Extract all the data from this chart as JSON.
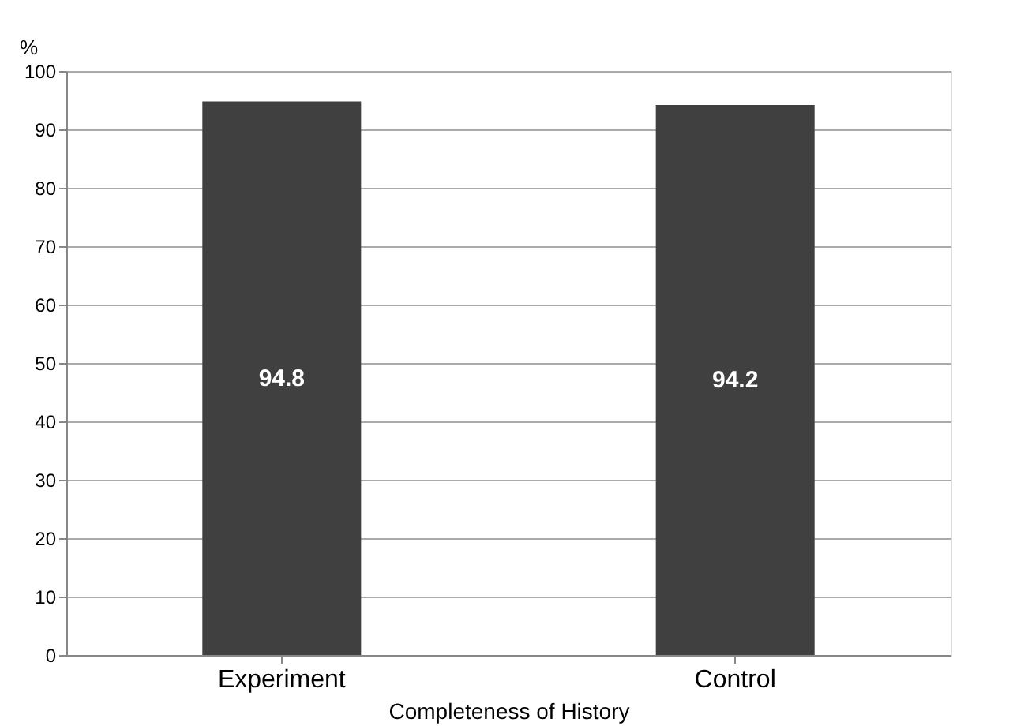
{
  "chart_data": {
    "type": "bar",
    "xlabel": "Completeness of History",
    "ylabel": "%",
    "categories": [
      "Experiment",
      "Control"
    ],
    "values": [
      94.8,
      94.2
    ],
    "color": "#404040",
    "ylim": [
      0,
      100
    ],
    "yticks": [
      0,
      10,
      20,
      30,
      40,
      50,
      60,
      70,
      80,
      90,
      100
    ],
    "grid": "y",
    "data_labels": true
  }
}
